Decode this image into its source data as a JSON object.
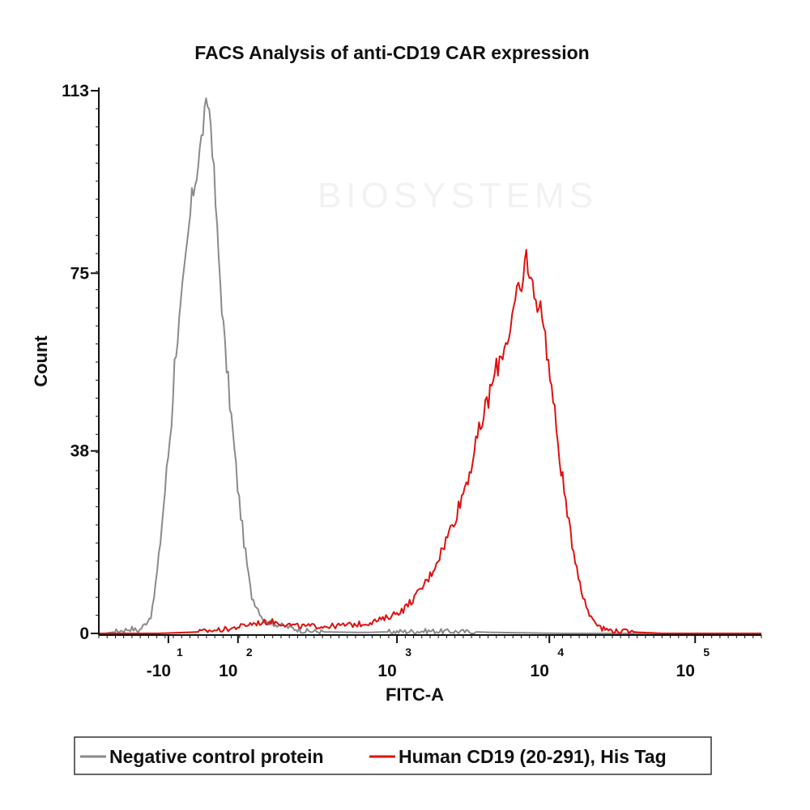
{
  "chart_data": {
    "type": "histogram",
    "title": "FACS Analysis of anti-CD19 CAR expression",
    "xlabel": "FITC-A",
    "ylabel": "Count",
    "y_ticks": [
      {
        "value": 0,
        "label": "0"
      },
      {
        "value": 38,
        "label": "38"
      },
      {
        "value": 75,
        "label": "75"
      },
      {
        "value": 113,
        "label": "113"
      }
    ],
    "ylim": [
      0,
      113
    ],
    "x_scale": "biexponential",
    "x_ticks": [
      {
        "pos": 0.105,
        "base": "-10",
        "exp": "1"
      },
      {
        "pos": 0.21,
        "base": "10",
        "exp": "2"
      },
      {
        "pos": 0.45,
        "base": "10",
        "exp": "3"
      },
      {
        "pos": 0.68,
        "base": "10",
        "exp": "4"
      },
      {
        "pos": 0.9,
        "base": "10",
        "exp": "5"
      }
    ],
    "series": [
      {
        "name": "Negative control protein",
        "color": "#8a8a8a",
        "points": [
          [
            0.01,
            0
          ],
          [
            0.03,
            0.5
          ],
          [
            0.05,
            1
          ],
          [
            0.06,
            0.5
          ],
          [
            0.07,
            2
          ],
          [
            0.08,
            4
          ],
          [
            0.09,
            15
          ],
          [
            0.1,
            30
          ],
          [
            0.11,
            45
          ],
          [
            0.115,
            58
          ],
          [
            0.12,
            63
          ],
          [
            0.13,
            76
          ],
          [
            0.14,
            90
          ],
          [
            0.15,
            98
          ],
          [
            0.16,
            108
          ],
          [
            0.165,
            111
          ],
          [
            0.17,
            105
          ],
          [
            0.18,
            80
          ],
          [
            0.19,
            60
          ],
          [
            0.2,
            45
          ],
          [
            0.21,
            30
          ],
          [
            0.22,
            18
          ],
          [
            0.23,
            8
          ],
          [
            0.25,
            2.5
          ],
          [
            0.28,
            1.5
          ],
          [
            0.31,
            0.5
          ],
          [
            0.34,
            0.3
          ],
          [
            0.4,
            0.2
          ],
          [
            0.5,
            0.5
          ],
          [
            0.6,
            0.2
          ],
          [
            0.7,
            0
          ],
          [
            1.0,
            0
          ]
        ]
      },
      {
        "name": "Human CD19 (20-291), His Tag",
        "color": "#e01010",
        "points": [
          [
            0.09,
            0
          ],
          [
            0.15,
            0.3
          ],
          [
            0.2,
            1
          ],
          [
            0.23,
            2
          ],
          [
            0.26,
            2.5
          ],
          [
            0.3,
            1.5
          ],
          [
            0.35,
            1.5
          ],
          [
            0.4,
            2
          ],
          [
            0.43,
            3
          ],
          [
            0.46,
            5
          ],
          [
            0.48,
            8
          ],
          [
            0.5,
            12
          ],
          [
            0.52,
            18
          ],
          [
            0.54,
            25
          ],
          [
            0.56,
            34
          ],
          [
            0.58,
            45
          ],
          [
            0.6,
            55
          ],
          [
            0.62,
            63
          ],
          [
            0.63,
            70
          ],
          [
            0.64,
            72
          ],
          [
            0.645,
            80
          ],
          [
            0.65,
            74
          ],
          [
            0.66,
            70
          ],
          [
            0.67,
            66
          ],
          [
            0.68,
            55
          ],
          [
            0.69,
            43
          ],
          [
            0.7,
            32
          ],
          [
            0.71,
            22
          ],
          [
            0.72,
            15
          ],
          [
            0.73,
            8
          ],
          [
            0.74,
            4
          ],
          [
            0.76,
            1
          ],
          [
            0.78,
            0.5
          ],
          [
            0.82,
            0.2
          ],
          [
            0.85,
            0
          ],
          [
            1.0,
            0
          ]
        ]
      }
    ],
    "legend": {
      "position": "bottom",
      "items": [
        {
          "label": "Negative control protein",
          "color": "#8a8a8a"
        },
        {
          "label": "Human CD19 (20-291), His Tag",
          "color": "#e01010"
        }
      ]
    }
  },
  "watermark": {
    "text": "BIOSYSTEMS"
  }
}
